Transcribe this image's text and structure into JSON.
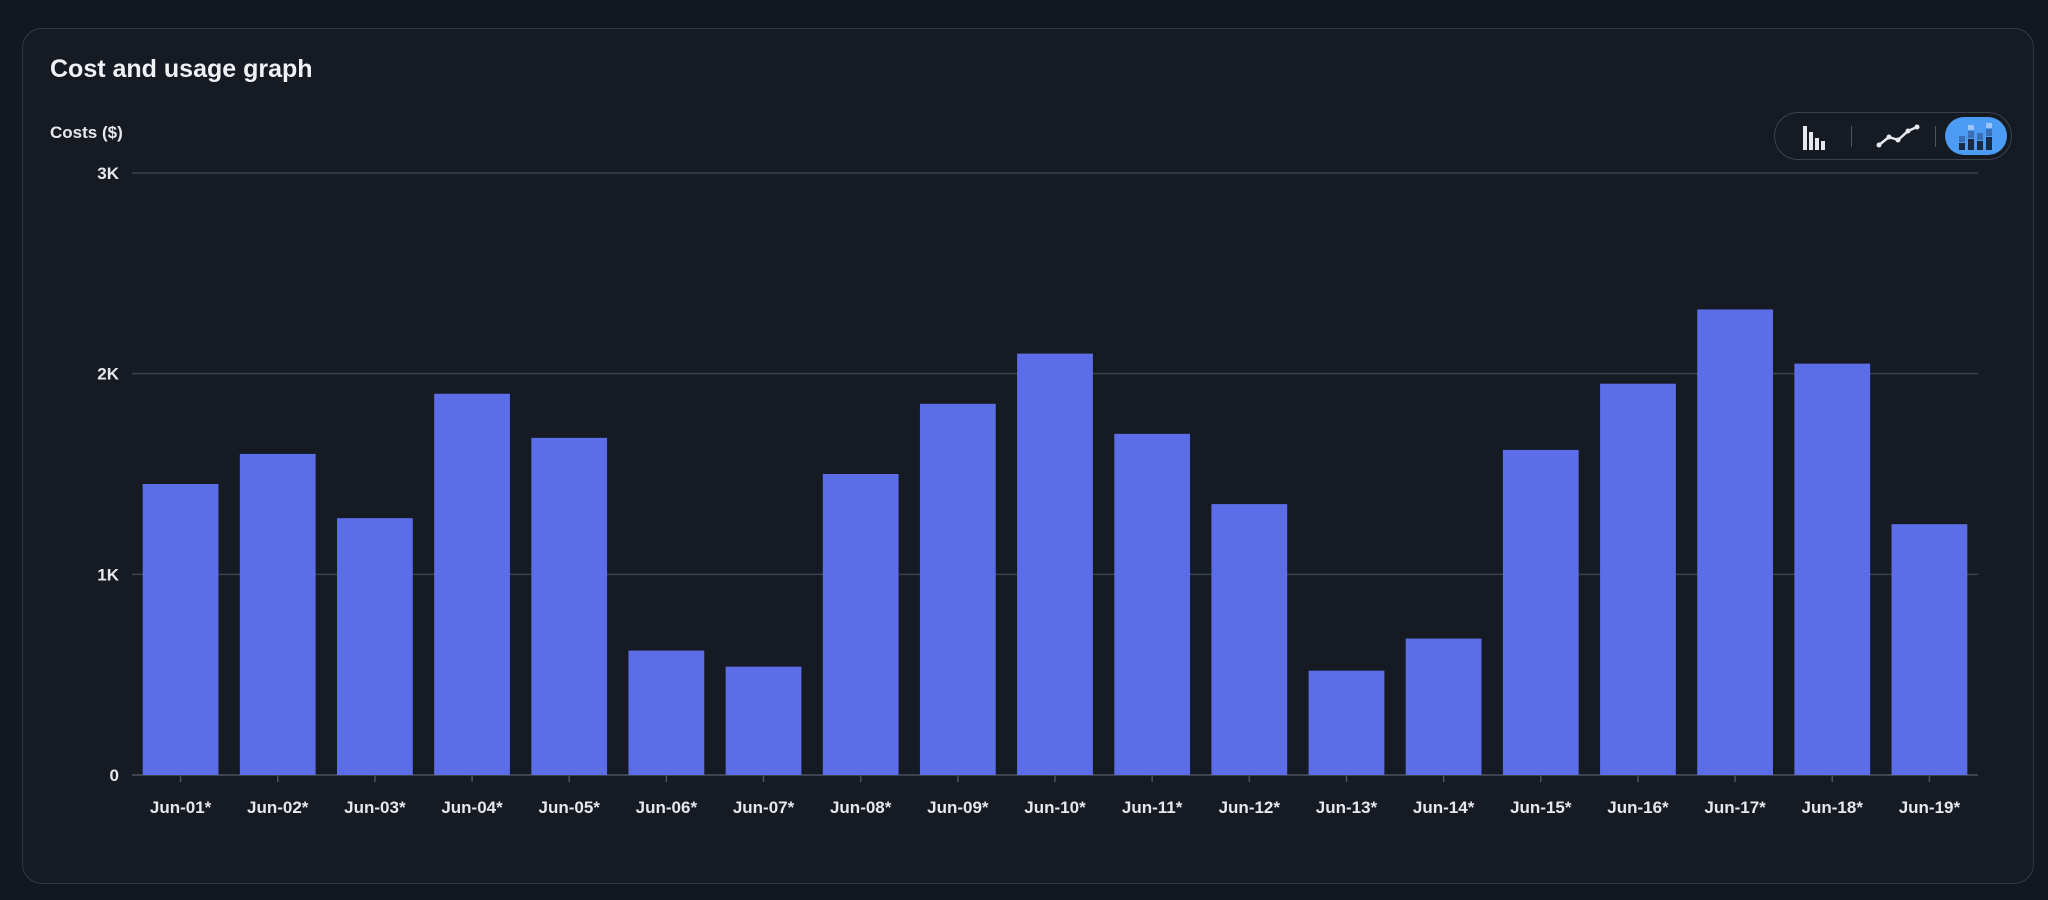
{
  "panel": {
    "title": "Cost and usage graph"
  },
  "view_toggle": {
    "options": [
      {
        "icon": "bar-chart-icon",
        "active": false
      },
      {
        "icon": "line-chart-icon",
        "active": false
      },
      {
        "icon": "stacked-bar-chart-icon",
        "active": true
      }
    ],
    "active_color": "#4c9cf5"
  },
  "chart_data": {
    "type": "bar",
    "ylabel": "Costs ($)",
    "xlabel": "",
    "categories": [
      "Jun-01*",
      "Jun-02*",
      "Jun-03*",
      "Jun-04*",
      "Jun-05*",
      "Jun-06*",
      "Jun-07*",
      "Jun-08*",
      "Jun-09*",
      "Jun-10*",
      "Jun-11*",
      "Jun-12*",
      "Jun-13*",
      "Jun-14*",
      "Jun-15*",
      "Jun-16*",
      "Jun-17*",
      "Jun-18*",
      "Jun-19*"
    ],
    "values": [
      1450,
      1600,
      1280,
      1900,
      1680,
      620,
      540,
      1500,
      1850,
      2100,
      1700,
      1350,
      520,
      680,
      1620,
      1950,
      2320,
      2050,
      1250
    ],
    "ylim": [
      0,
      3000
    ],
    "yticks": [
      0,
      1000,
      2000,
      3000
    ],
    "ytick_labels": [
      "0",
      "1K",
      "2K",
      "3K"
    ],
    "grid": true,
    "legend": "none",
    "bar_color": "#5b6ee8"
  }
}
